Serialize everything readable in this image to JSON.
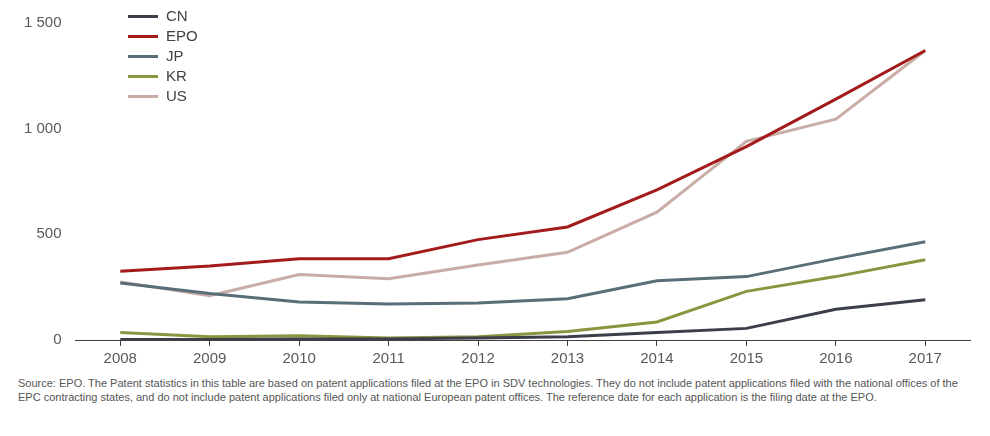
{
  "chart_data": {
    "type": "line",
    "categories": [
      "2008",
      "2009",
      "2010",
      "2011",
      "2012",
      "2013",
      "2014",
      "2015",
      "2016",
      "2017"
    ],
    "series": [
      {
        "name": "CN",
        "color": "#3a3f4a",
        "values": [
          2,
          2,
          5,
          5,
          10,
          15,
          35,
          55,
          145,
          190
        ]
      },
      {
        "name": "EPO",
        "color": "#a31b1b",
        "values": [
          325,
          350,
          385,
          385,
          475,
          535,
          710,
          915,
          1140,
          1370
        ]
      },
      {
        "name": "JP",
        "color": "#5a6e7a",
        "values": [
          270,
          220,
          180,
          170,
          175,
          195,
          280,
          300,
          385,
          465
        ]
      },
      {
        "name": "KR",
        "color": "#8c9440",
        "values": [
          35,
          15,
          20,
          10,
          15,
          40,
          85,
          230,
          300,
          380
        ]
      },
      {
        "name": "US",
        "color": "#c9aca6",
        "values": [
          275,
          210,
          310,
          290,
          355,
          415,
          605,
          940,
          1045,
          1370
        ]
      }
    ],
    "ylim": [
      0,
      1500
    ],
    "yticks": [
      0,
      500,
      {
        "value": 1000,
        "label": "1 000"
      },
      {
        "value": 1500,
        "label": "1 500"
      }
    ],
    "grid": false,
    "legend": "upper left",
    "source": "Source: EPO. The Patent statistics in this table are based on patent applications filed at the EPO in SDV technologies. They do not include patent applications filed with the national offices of the EPC contracting states, and do not include patent applications filed only at national European patent offices. The reference date for each application is the filing date at the EPO."
  }
}
